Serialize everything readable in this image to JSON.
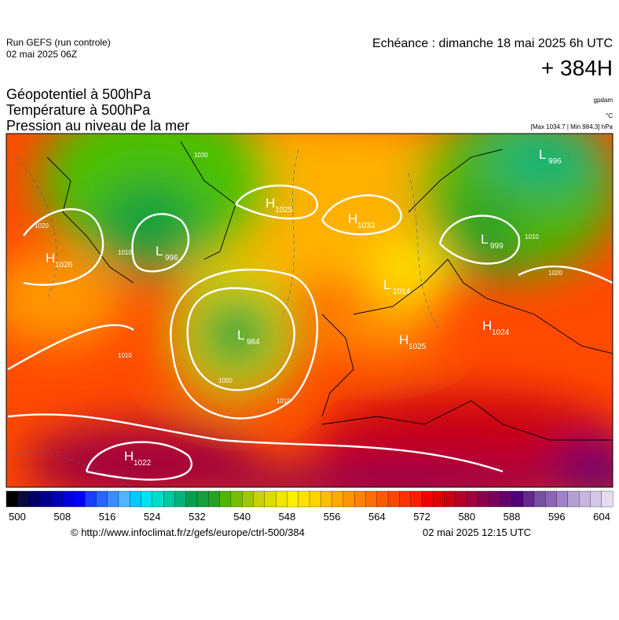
{
  "header": {
    "run": "Run GEFS (run controle)",
    "run_date": "02 mai 2025 06Z",
    "echeance": "Echéance : dimanche 18 mai 2025 6h UTC",
    "lead": "+ 384H"
  },
  "titles": [
    "Géopotentiel à 500hPa",
    "Température à 500hPa",
    "Pression au niveau de la mer"
  ],
  "units": {
    "geopotential": "gpdam",
    "temperature": "°C",
    "pressure": "[Max 1034.7 | Min 984.3] hPa"
  },
  "centers": [
    {
      "letter": "H",
      "value": 1026
    },
    {
      "letter": "L",
      "value": 996
    },
    {
      "letter": "H",
      "value": 1025
    },
    {
      "letter": "H",
      "value": 1033
    },
    {
      "letter": "L",
      "value": 984
    },
    {
      "letter": "L",
      "value": 1014
    },
    {
      "letter": "H",
      "value": 1025
    },
    {
      "letter": "H",
      "value": 1024
    },
    {
      "letter": "L",
      "value": 999
    },
    {
      "letter": "L",
      "value": 996
    },
    {
      "letter": "H",
      "value": 1022
    }
  ],
  "isobar_labels": [
    1020,
    1010,
    1010,
    1000,
    1010,
    1020,
    1010,
    1030
  ],
  "colorbar": {
    "ticks": [
      500,
      508,
      516,
      524,
      532,
      540,
      548,
      556,
      564,
      572,
      580,
      588,
      596,
      604
    ],
    "colors": [
      "#000000",
      "#0a0a3c",
      "#000064",
      "#00008c",
      "#0000b4",
      "#0000dc",
      "#0000ff",
      "#1a3cff",
      "#2864ff",
      "#3c8cff",
      "#50b4ff",
      "#00c8ff",
      "#00e0f0",
      "#00dcc8",
      "#00c8a0",
      "#00b478",
      "#00a050",
      "#14a03c",
      "#28a028",
      "#50b400",
      "#78be00",
      "#a0c800",
      "#c8d200",
      "#dcdc00",
      "#f0e600",
      "#fff000",
      "#ffe100",
      "#ffd200",
      "#ffbe00",
      "#ffaa00",
      "#ff9600",
      "#ff8200",
      "#ff6e00",
      "#ff5a00",
      "#ff4600",
      "#ff3200",
      "#ff1e00",
      "#f00000",
      "#dc0000",
      "#c80014",
      "#b40028",
      "#a0003c",
      "#8c0050",
      "#78005a",
      "#64006e",
      "#500078",
      "#64288c",
      "#7850a0",
      "#8c64b4",
      "#a082c8",
      "#b4a0d2",
      "#c8b4dc",
      "#d2c8e6",
      "#e6dcf0"
    ]
  },
  "footer": {
    "url": "© http://www.infoclimat.fr/z/gefs/europe/ctrl-500/384",
    "date": "02 mai 2025 12:15 UTC"
  }
}
